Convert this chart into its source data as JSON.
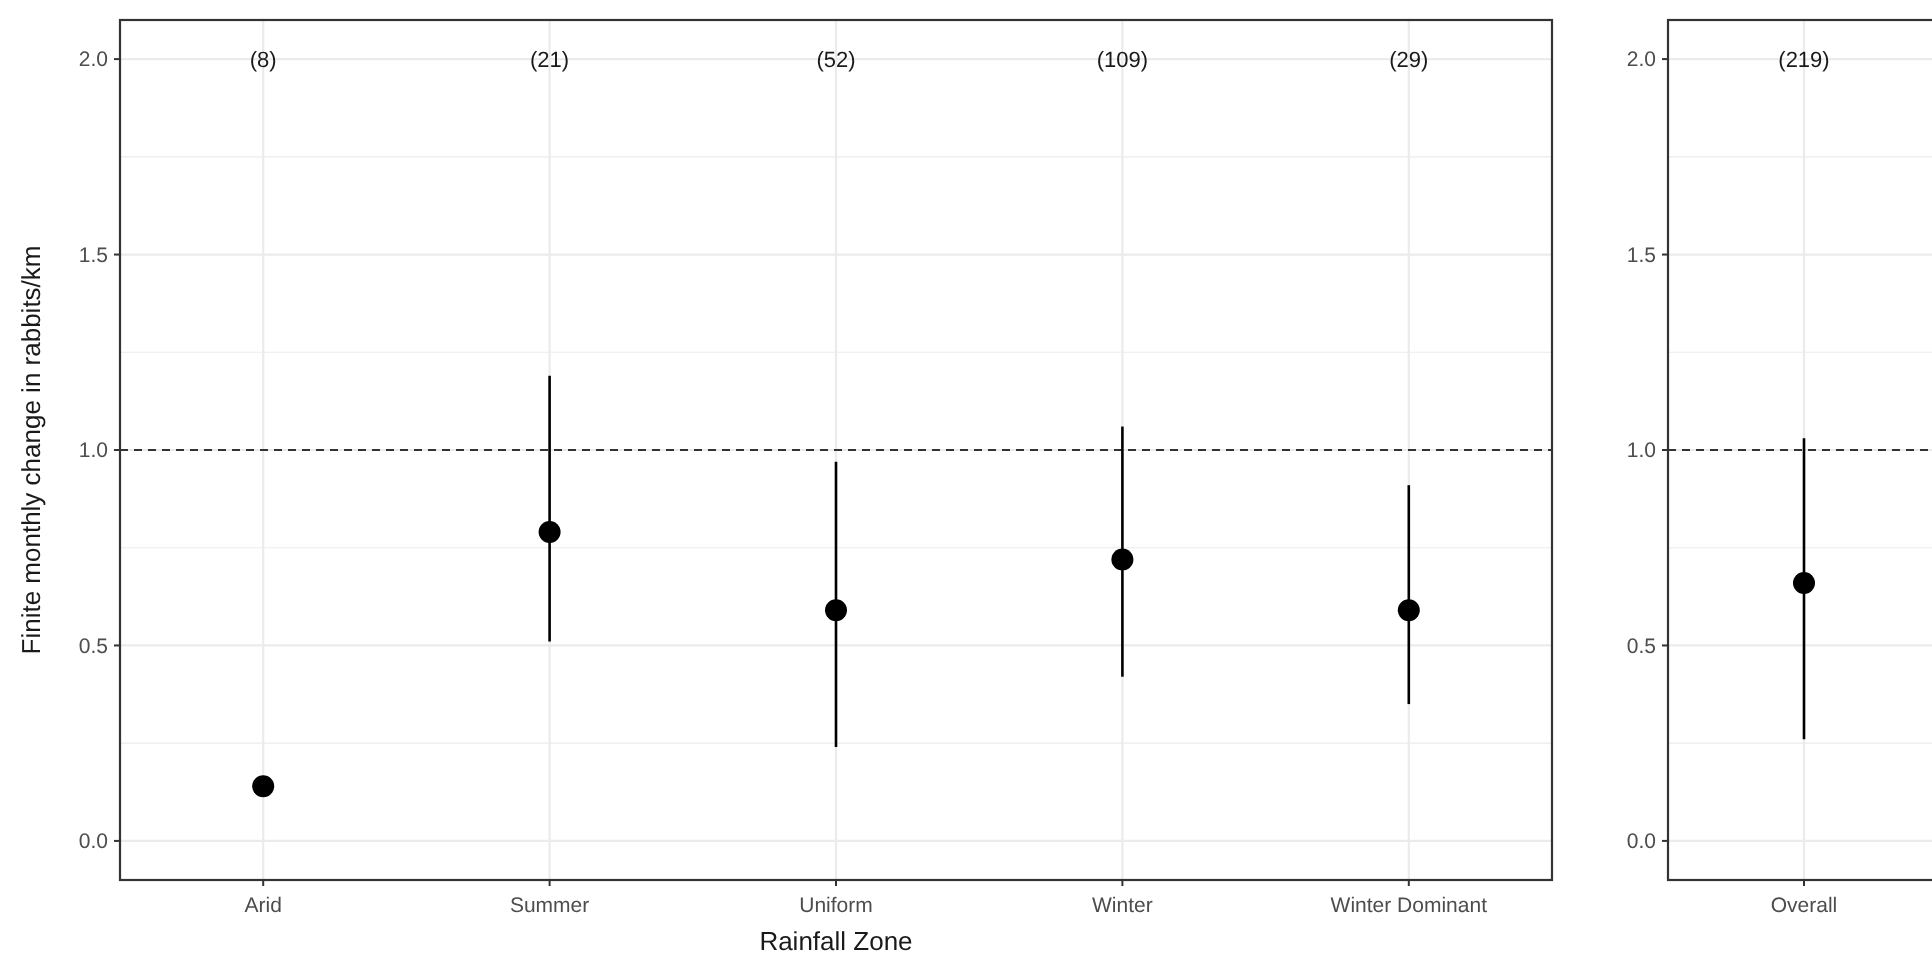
{
  "chart_data": [
    {
      "type": "scatter",
      "xlabel": "Rainfall Zone",
      "ylabel": "Finite monthly change in rabbits/km",
      "categories": [
        "Arid",
        "Summer",
        "Uniform",
        "Winter",
        "Winter Dominant"
      ],
      "values": [
        0.14,
        0.79,
        0.59,
        0.72,
        0.59
      ],
      "errors": [
        null,
        [
          0.51,
          1.19
        ],
        [
          0.24,
          0.97
        ],
        [
          0.42,
          1.06
        ],
        [
          0.35,
          0.91
        ]
      ],
      "color": "#000000",
      "marker": "circle",
      "ylim": [
        -0.1,
        2.1
      ],
      "yticks": [
        {
          "value": 0,
          "label": "0.0"
        },
        {
          "value": 0.25,
          "label": null
        },
        {
          "value": 0.5,
          "label": "0.5"
        },
        {
          "value": 0.75,
          "label": null
        },
        {
          "value": 1,
          "label": "1.0"
        },
        {
          "value": 1.25,
          "label": null
        },
        {
          "value": 1.5,
          "label": "1.5"
        },
        {
          "value": 1.75,
          "label": null
        },
        {
          "value": 2,
          "label": "2.0"
        }
      ],
      "grid": true,
      "ref_lines": [
        {
          "axis": "y",
          "value": 1,
          "line_style": "dashed"
        }
      ],
      "annotations": [
        "(8)",
        "(21)",
        "(52)",
        "(109)",
        "(29)"
      ]
    },
    {
      "type": "scatter",
      "categories": [
        "Overall"
      ],
      "values": [
        0.66
      ],
      "errors": [
        [
          0.26,
          1.03
        ]
      ],
      "color": "#000000",
      "marker": "circle",
      "ylim": [
        -0.1,
        2.1
      ],
      "yticks": [
        {
          "value": 0,
          "label": "0.0"
        },
        {
          "value": 0.25,
          "label": null
        },
        {
          "value": 0.5,
          "label": "0.5"
        },
        {
          "value": 0.75,
          "label": null
        },
        {
          "value": 1,
          "label": "1.0"
        },
        {
          "value": 1.25,
          "label": null
        },
        {
          "value": 1.5,
          "label": "1.5"
        },
        {
          "value": 1.75,
          "label": null
        },
        {
          "value": 2,
          "label": "2.0"
        }
      ],
      "grid": true,
      "ref_lines": [
        {
          "axis": "y",
          "value": 1,
          "line_style": "dashed"
        }
      ],
      "annotations": [
        "(219)"
      ]
    }
  ]
}
